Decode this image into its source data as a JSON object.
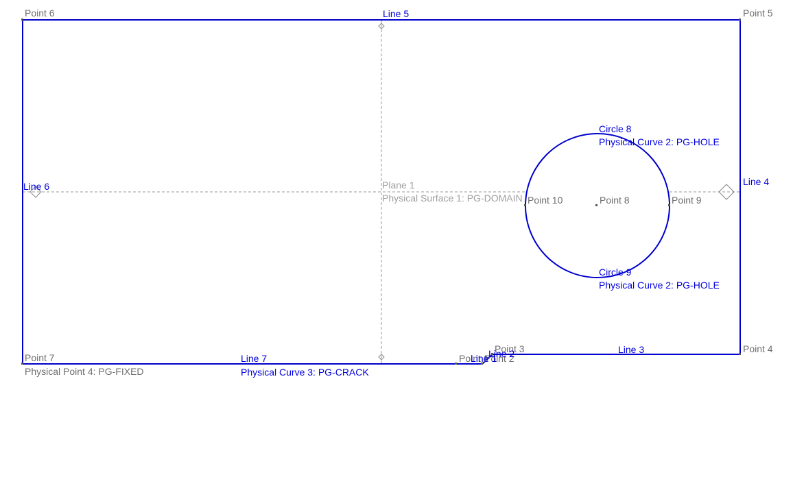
{
  "points": {
    "p3": "Point 3",
    "p4": "Point 4",
    "p5": "Point 5",
    "p6": "Point 6",
    "p7": "Point 7",
    "p7_physical": "Physical Point 4: PG-FIXED",
    "p8": "Point 8",
    "p9": "Point 9",
    "p10": "Point 10",
    "p1_overlap": "Point 1",
    "p2_overlap": "Point 2"
  },
  "curves": {
    "line1": "Line 1",
    "line2": "Line 2",
    "line3": "Line 3",
    "line4": "Line 4",
    "line5": "Line 5",
    "line6": "Line 6",
    "line7": "Line 7",
    "line7_physical": "Physical Curve 3: PG-CRACK",
    "circle8": "Circle 8",
    "circle8_physical": "Physical Curve 2: PG-HOLE",
    "circle9": "Circle 9",
    "circle9_physical": "Physical Curve 2: PG-HOLE"
  },
  "surface": {
    "plane": "Plane 1",
    "physical": "Physical Surface 1: PG-DOMAIN"
  },
  "colors": {
    "geometry": "#0000cc",
    "curve_label": "#0000dd",
    "point_label": "#6e6e6e",
    "surface_label": "#a0a0a0"
  }
}
